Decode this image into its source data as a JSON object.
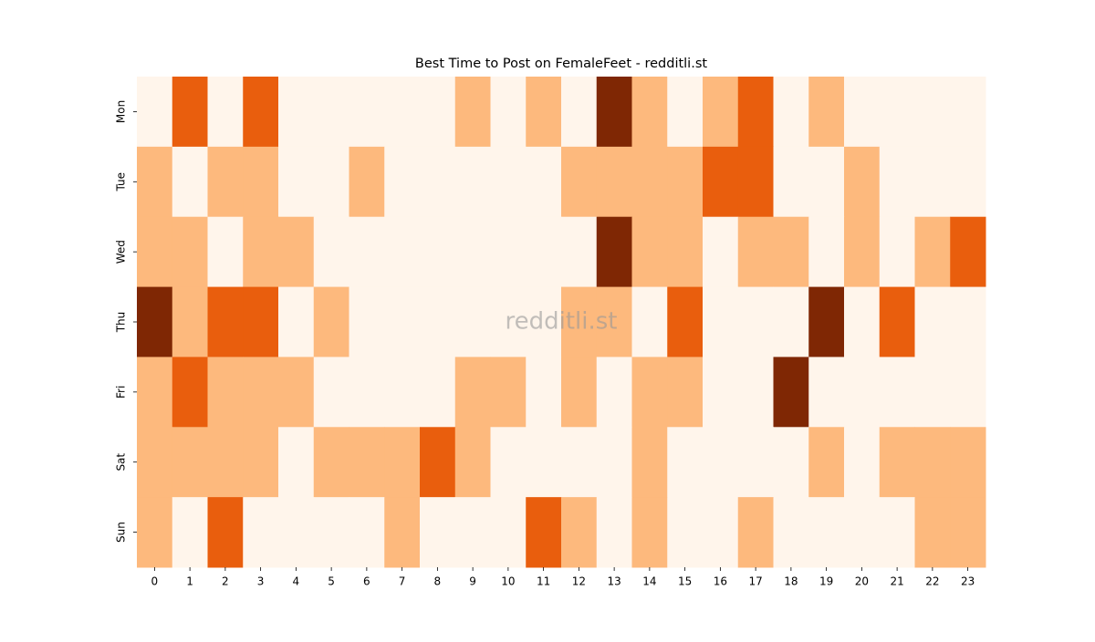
{
  "chart_data": {
    "type": "heatmap",
    "title": "Best Time to Post on FemaleFeet - redditli.st",
    "watermark": "redditli.st",
    "x": [
      0,
      1,
      2,
      3,
      4,
      5,
      6,
      7,
      8,
      9,
      10,
      11,
      12,
      13,
      14,
      15,
      16,
      17,
      18,
      19,
      20,
      21,
      22,
      23
    ],
    "y": [
      "Mon",
      "Tue",
      "Wed",
      "Thu",
      "Fri",
      "Sat",
      "Sun"
    ],
    "values": [
      [
        0,
        2,
        0,
        2,
        0,
        0,
        0,
        0,
        0,
        1,
        0,
        1,
        0,
        3,
        1,
        0,
        1,
        2,
        0,
        1,
        0,
        0,
        0,
        0
      ],
      [
        1,
        0,
        1,
        1,
        0,
        0,
        1,
        0,
        0,
        0,
        0,
        0,
        1,
        1,
        1,
        1,
        2,
        2,
        0,
        0,
        1,
        0,
        0,
        0
      ],
      [
        1,
        1,
        0,
        1,
        1,
        0,
        0,
        0,
        0,
        0,
        0,
        0,
        0,
        3,
        1,
        1,
        0,
        1,
        1,
        0,
        1,
        0,
        1,
        2
      ],
      [
        3,
        1,
        2,
        2,
        0,
        1,
        0,
        0,
        0,
        0,
        0,
        0,
        1,
        1,
        0,
        2,
        0,
        0,
        0,
        3,
        0,
        2,
        0,
        0
      ],
      [
        1,
        2,
        1,
        1,
        1,
        0,
        0,
        0,
        0,
        1,
        1,
        0,
        1,
        0,
        1,
        1,
        0,
        0,
        3,
        0,
        0,
        0,
        0,
        0
      ],
      [
        1,
        1,
        1,
        1,
        0,
        1,
        1,
        1,
        2,
        1,
        0,
        0,
        0,
        0,
        1,
        0,
        0,
        0,
        0,
        1,
        0,
        1,
        1,
        1
      ],
      [
        1,
        0,
        2,
        0,
        0,
        0,
        0,
        1,
        0,
        0,
        0,
        2,
        1,
        0,
        1,
        0,
        0,
        1,
        0,
        0,
        0,
        0,
        1,
        1
      ]
    ],
    "zlim": [
      0,
      3
    ],
    "colors": [
      "#fff5eb",
      "#fdb97d",
      "#e95e0d",
      "#7f2704"
    ]
  }
}
